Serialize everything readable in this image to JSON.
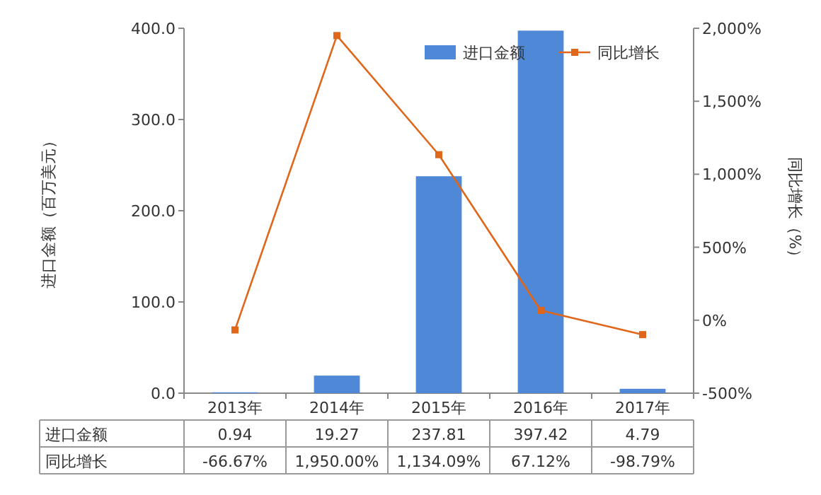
{
  "chart_data": {
    "type": "bar",
    "categories": [
      "2013年",
      "2014年",
      "2015年",
      "2016年",
      "2017年"
    ],
    "ylabel": "进口金额（百万美元）",
    "y2label": "同比增长（%）",
    "ylim": [
      0,
      400
    ],
    "yticks": [
      {
        "value": 0,
        "label": "0.0"
      },
      {
        "value": 100,
        "label": "100.0"
      },
      {
        "value": 200,
        "label": "200.0"
      },
      {
        "value": 300,
        "label": "300.0"
      },
      {
        "value": 400,
        "label": "400.0"
      }
    ],
    "y2lim": [
      -500,
      2000
    ],
    "y2ticks": [
      {
        "value": -500,
        "label": "-500%"
      },
      {
        "value": 0,
        "label": "0%"
      },
      {
        "value": 500,
        "label": "500%"
      },
      {
        "value": 1000,
        "label": "1,000%"
      },
      {
        "value": 1500,
        "label": "1,500%"
      },
      {
        "value": 2000,
        "label": "2,000%"
      }
    ],
    "legend": "top right",
    "series": [
      {
        "name": "进口金额",
        "color": "#4f88d6",
        "values": [
          0.94,
          19.27,
          237.81,
          397.42,
          4.79
        ],
        "value_labels": [
          "0.94",
          "19.27",
          "237.81",
          "397.42",
          "4.79"
        ]
      },
      {
        "name": "同比增长",
        "type": "line",
        "axis": "y2",
        "marker": "square",
        "color": "#e0661a",
        "values": [
          -66.67,
          1950.0,
          1134.09,
          67.12,
          -98.79
        ],
        "value_labels": [
          "-66.67%",
          "1,950.00%",
          "1,134.09%",
          "67.12%",
          "-98.79%"
        ]
      }
    ]
  }
}
